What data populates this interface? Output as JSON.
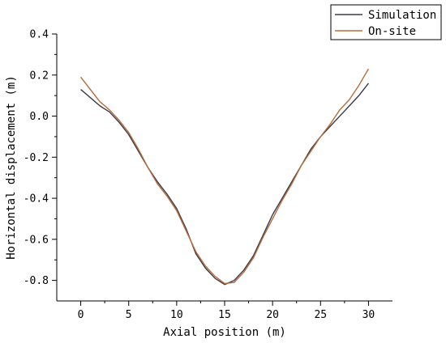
{
  "chart_data": {
    "type": "line",
    "xlabel": "Axial position (m)",
    "ylabel": "Horizontal displacement (m)",
    "xlim": [
      -2.5,
      32.5
    ],
    "ylim": [
      -0.9,
      0.4
    ],
    "x_ticks": [
      0,
      5,
      10,
      15,
      20,
      25,
      30
    ],
    "x_tick_labels": [
      "0",
      "5",
      "10",
      "15",
      "20",
      "25",
      "30"
    ],
    "y_ticks": [
      0.4,
      0.2,
      0.0,
      -0.2,
      -0.4,
      -0.6,
      -0.8
    ],
    "y_tick_labels": [
      "0.4",
      "0.2",
      "0.0",
      "-0.2",
      "-0.4",
      "-0.6",
      "-0.8"
    ],
    "legend_position": "top-right",
    "series": [
      {
        "name": "Simulation",
        "color": "#3a3a4a",
        "x": [
          0,
          1,
          2,
          3,
          4,
          5,
          6,
          7,
          8,
          9,
          10,
          11,
          12,
          13,
          14,
          15,
          16,
          17,
          18,
          19,
          20,
          21,
          22,
          23,
          24,
          25,
          26,
          27,
          28,
          29,
          30
        ],
        "y": [
          0.13,
          0.09,
          0.05,
          0.02,
          -0.03,
          -0.09,
          -0.17,
          -0.25,
          -0.32,
          -0.38,
          -0.45,
          -0.55,
          -0.67,
          -0.74,
          -0.79,
          -0.82,
          -0.8,
          -0.75,
          -0.68,
          -0.58,
          -0.48,
          -0.4,
          -0.32,
          -0.24,
          -0.16,
          -0.1,
          -0.05,
          0.0,
          0.05,
          0.1,
          0.16
        ]
      },
      {
        "name": "On-site",
        "color": "#b86a3a",
        "x": [
          0,
          1,
          2,
          3,
          4,
          5,
          6,
          7,
          8,
          9,
          10,
          11,
          12,
          13,
          14,
          15,
          16,
          17,
          18,
          19,
          20,
          21,
          22,
          23,
          24,
          25,
          26,
          27,
          28,
          29,
          30
        ],
        "y": [
          0.19,
          0.13,
          0.07,
          0.03,
          -0.02,
          -0.08,
          -0.16,
          -0.25,
          -0.33,
          -0.39,
          -0.46,
          -0.56,
          -0.66,
          -0.73,
          -0.78,
          -0.815,
          -0.81,
          -0.76,
          -0.69,
          -0.59,
          -0.5,
          -0.41,
          -0.33,
          -0.24,
          -0.17,
          -0.1,
          -0.04,
          0.03,
          0.08,
          0.15,
          0.23
        ]
      }
    ]
  }
}
